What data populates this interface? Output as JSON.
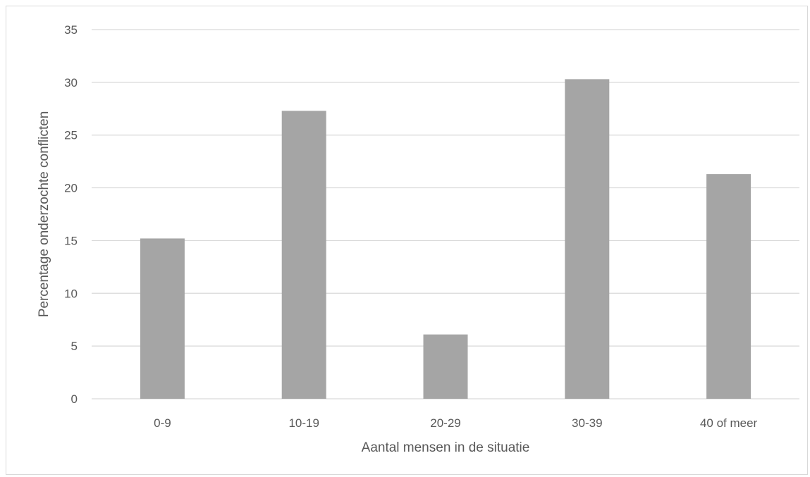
{
  "chart_data": {
    "type": "bar",
    "title": "",
    "xlabel": "Aantal mensen in de situatie",
    "ylabel": "Percentage onderzochte conflicten",
    "categories": [
      "0-9",
      "10-19",
      "20-29",
      "30-39",
      "40 of meer"
    ],
    "values": [
      15.2,
      27.3,
      6.1,
      30.3,
      21.3
    ],
    "ylim": [
      0,
      35
    ],
    "yticks": [
      0,
      5,
      10,
      15,
      20,
      25,
      30,
      35
    ],
    "grid": true,
    "legend": "none",
    "bar_color": "#a5a5a5",
    "grid_color": "#d9d9d9"
  }
}
